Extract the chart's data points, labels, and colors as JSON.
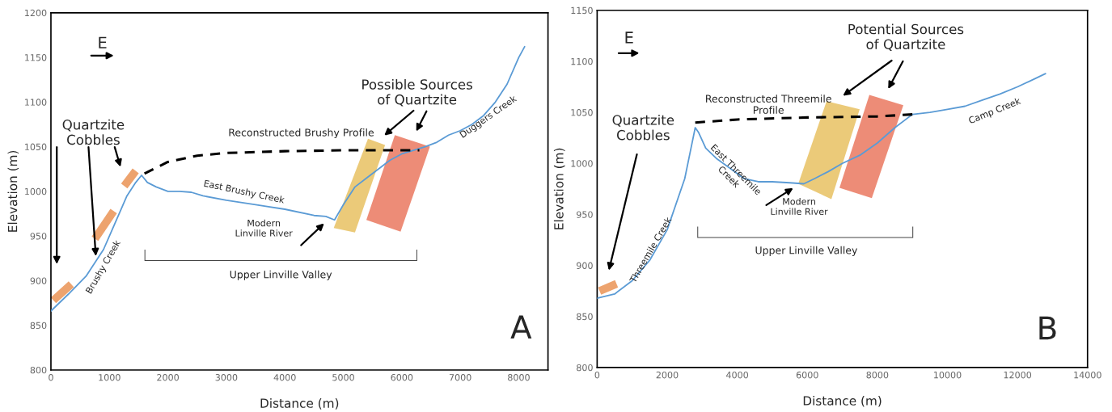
{
  "chart_data": [
    {
      "type": "line",
      "xlabel": "Distance (m)",
      "ylabel": "Elevation (m)",
      "xlim": [
        0,
        8500
      ],
      "ylim": [
        800,
        1200
      ],
      "xticks": [
        0,
        1000,
        2000,
        3000,
        4000,
        5000,
        6000,
        7000,
        8000
      ],
      "yticks": [
        800,
        850,
        900,
        950,
        1000,
        1050,
        1100,
        1150,
        1200
      ],
      "grid": false,
      "legend": false,
      "series": [
        {
          "color": "#5b9bd5",
          "line_style": "solid",
          "x": [
            0,
            300,
            600,
            900,
            1100,
            1300,
            1450,
            1550,
            1650,
            1800,
            2000,
            2200,
            2400,
            2600,
            3000,
            3500,
            4000,
            4500,
            4700,
            4850,
            5000,
            5200,
            5400,
            5600,
            5800,
            6000,
            6200,
            6400,
            6600,
            6800,
            7000,
            7200,
            7400,
            7600,
            7800,
            8000,
            8100
          ],
          "values": [
            866,
            885,
            905,
            935,
            965,
            995,
            1010,
            1018,
            1010,
            1005,
            1000,
            1000,
            999,
            995,
            990,
            985,
            980,
            973,
            972,
            968,
            985,
            1005,
            1015,
            1025,
            1035,
            1042,
            1046,
            1050,
            1055,
            1063,
            1068,
            1075,
            1085,
            1100,
            1120,
            1150,
            1162
          ]
        },
        {
          "color": "#000000",
          "line_style": "dashed",
          "x": [
            1600,
            2000,
            2500,
            3000,
            4000,
            5000,
            6300
          ],
          "values": [
            1020,
            1033,
            1040,
            1043,
            1045,
            1046,
            1046
          ]
        }
      ],
      "annotations": [
        "Quartzite\nCobbles",
        "Reconstructed Brushy Profile",
        "Possible Sources\nof Quartzite",
        "East Brushy Creek",
        "Duggers Creek",
        "Brushy Creek",
        "Modern\nLinville River",
        "Upper Linville Valley",
        "A",
        "E"
      ]
    },
    {
      "type": "line",
      "xlabel": "Distance (m)",
      "ylabel": "Elevation (m)",
      "xlim": [
        0,
        14000
      ],
      "ylim": [
        800,
        1150
      ],
      "xticks": [
        0,
        2000,
        4000,
        6000,
        8000,
        10000,
        12000,
        14000
      ],
      "yticks": [
        800,
        850,
        900,
        950,
        1000,
        1050,
        1100,
        1150
      ],
      "grid": false,
      "legend": false,
      "series": [
        {
          "color": "#5b9bd5",
          "line_style": "solid",
          "x": [
            0,
            500,
            1000,
            1500,
            2000,
            2300,
            2500,
            2650,
            2800,
            2900,
            3100,
            3400,
            3800,
            4200,
            4600,
            5000,
            5500,
            5900,
            6200,
            6600,
            7000,
            7500,
            8000,
            8500,
            9000,
            9500,
            10000,
            10500,
            11000,
            11500,
            12000,
            12500,
            12800
          ],
          "values": [
            868,
            872,
            885,
            905,
            935,
            965,
            985,
            1010,
            1035,
            1030,
            1015,
            1005,
            995,
            985,
            982,
            982,
            981,
            980,
            985,
            992,
            1000,
            1008,
            1020,
            1035,
            1048,
            1050,
            1053,
            1056,
            1062,
            1068,
            1075,
            1083,
            1088
          ]
        },
        {
          "color": "#000000",
          "line_style": "dashed",
          "x": [
            2800,
            4000,
            6000,
            8000,
            9000
          ],
          "values": [
            1040,
            1043,
            1045,
            1046,
            1048
          ]
        }
      ],
      "annotations": [
        "Quartzite\nCobbles",
        "Reconstructed Threemile\nProfile",
        "Potential Sources\nof Quartzite",
        "East Threemile\nCreek",
        "Camp Creek",
        "Threemile Creek",
        "Modern\nLinville River",
        "Upper Linville Valley",
        "B",
        "E"
      ]
    }
  ]
}
